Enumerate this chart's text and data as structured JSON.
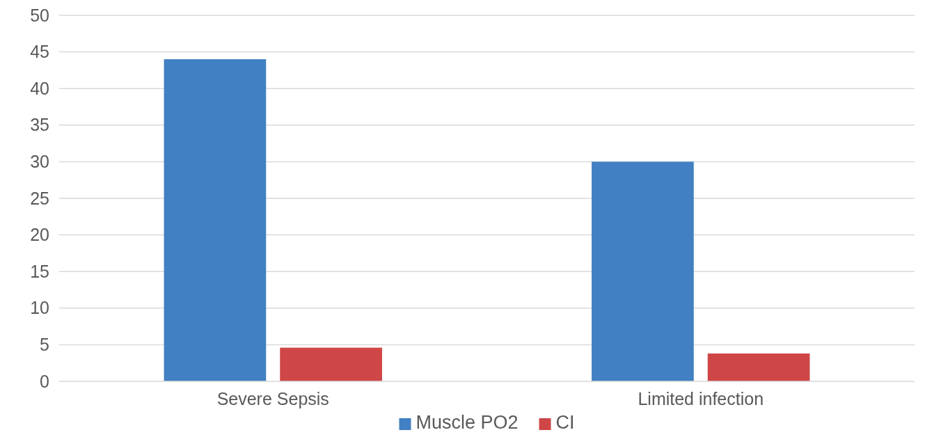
{
  "chart_data": {
    "type": "bar",
    "categories": [
      "Severe Sepsis",
      "Limited infection"
    ],
    "series": [
      {
        "name": "Muscle PO2",
        "color": "#4180c2",
        "values": [
          44,
          30
        ]
      },
      {
        "name": "CI",
        "color": "#cf4647",
        "values": [
          4.6,
          3.8
        ]
      }
    ],
    "ylim": [
      0,
      50
    ],
    "yticks": [
      0,
      5,
      10,
      15,
      20,
      25,
      30,
      35,
      40,
      45,
      50
    ],
    "grid": "y",
    "legend": "bottom"
  }
}
